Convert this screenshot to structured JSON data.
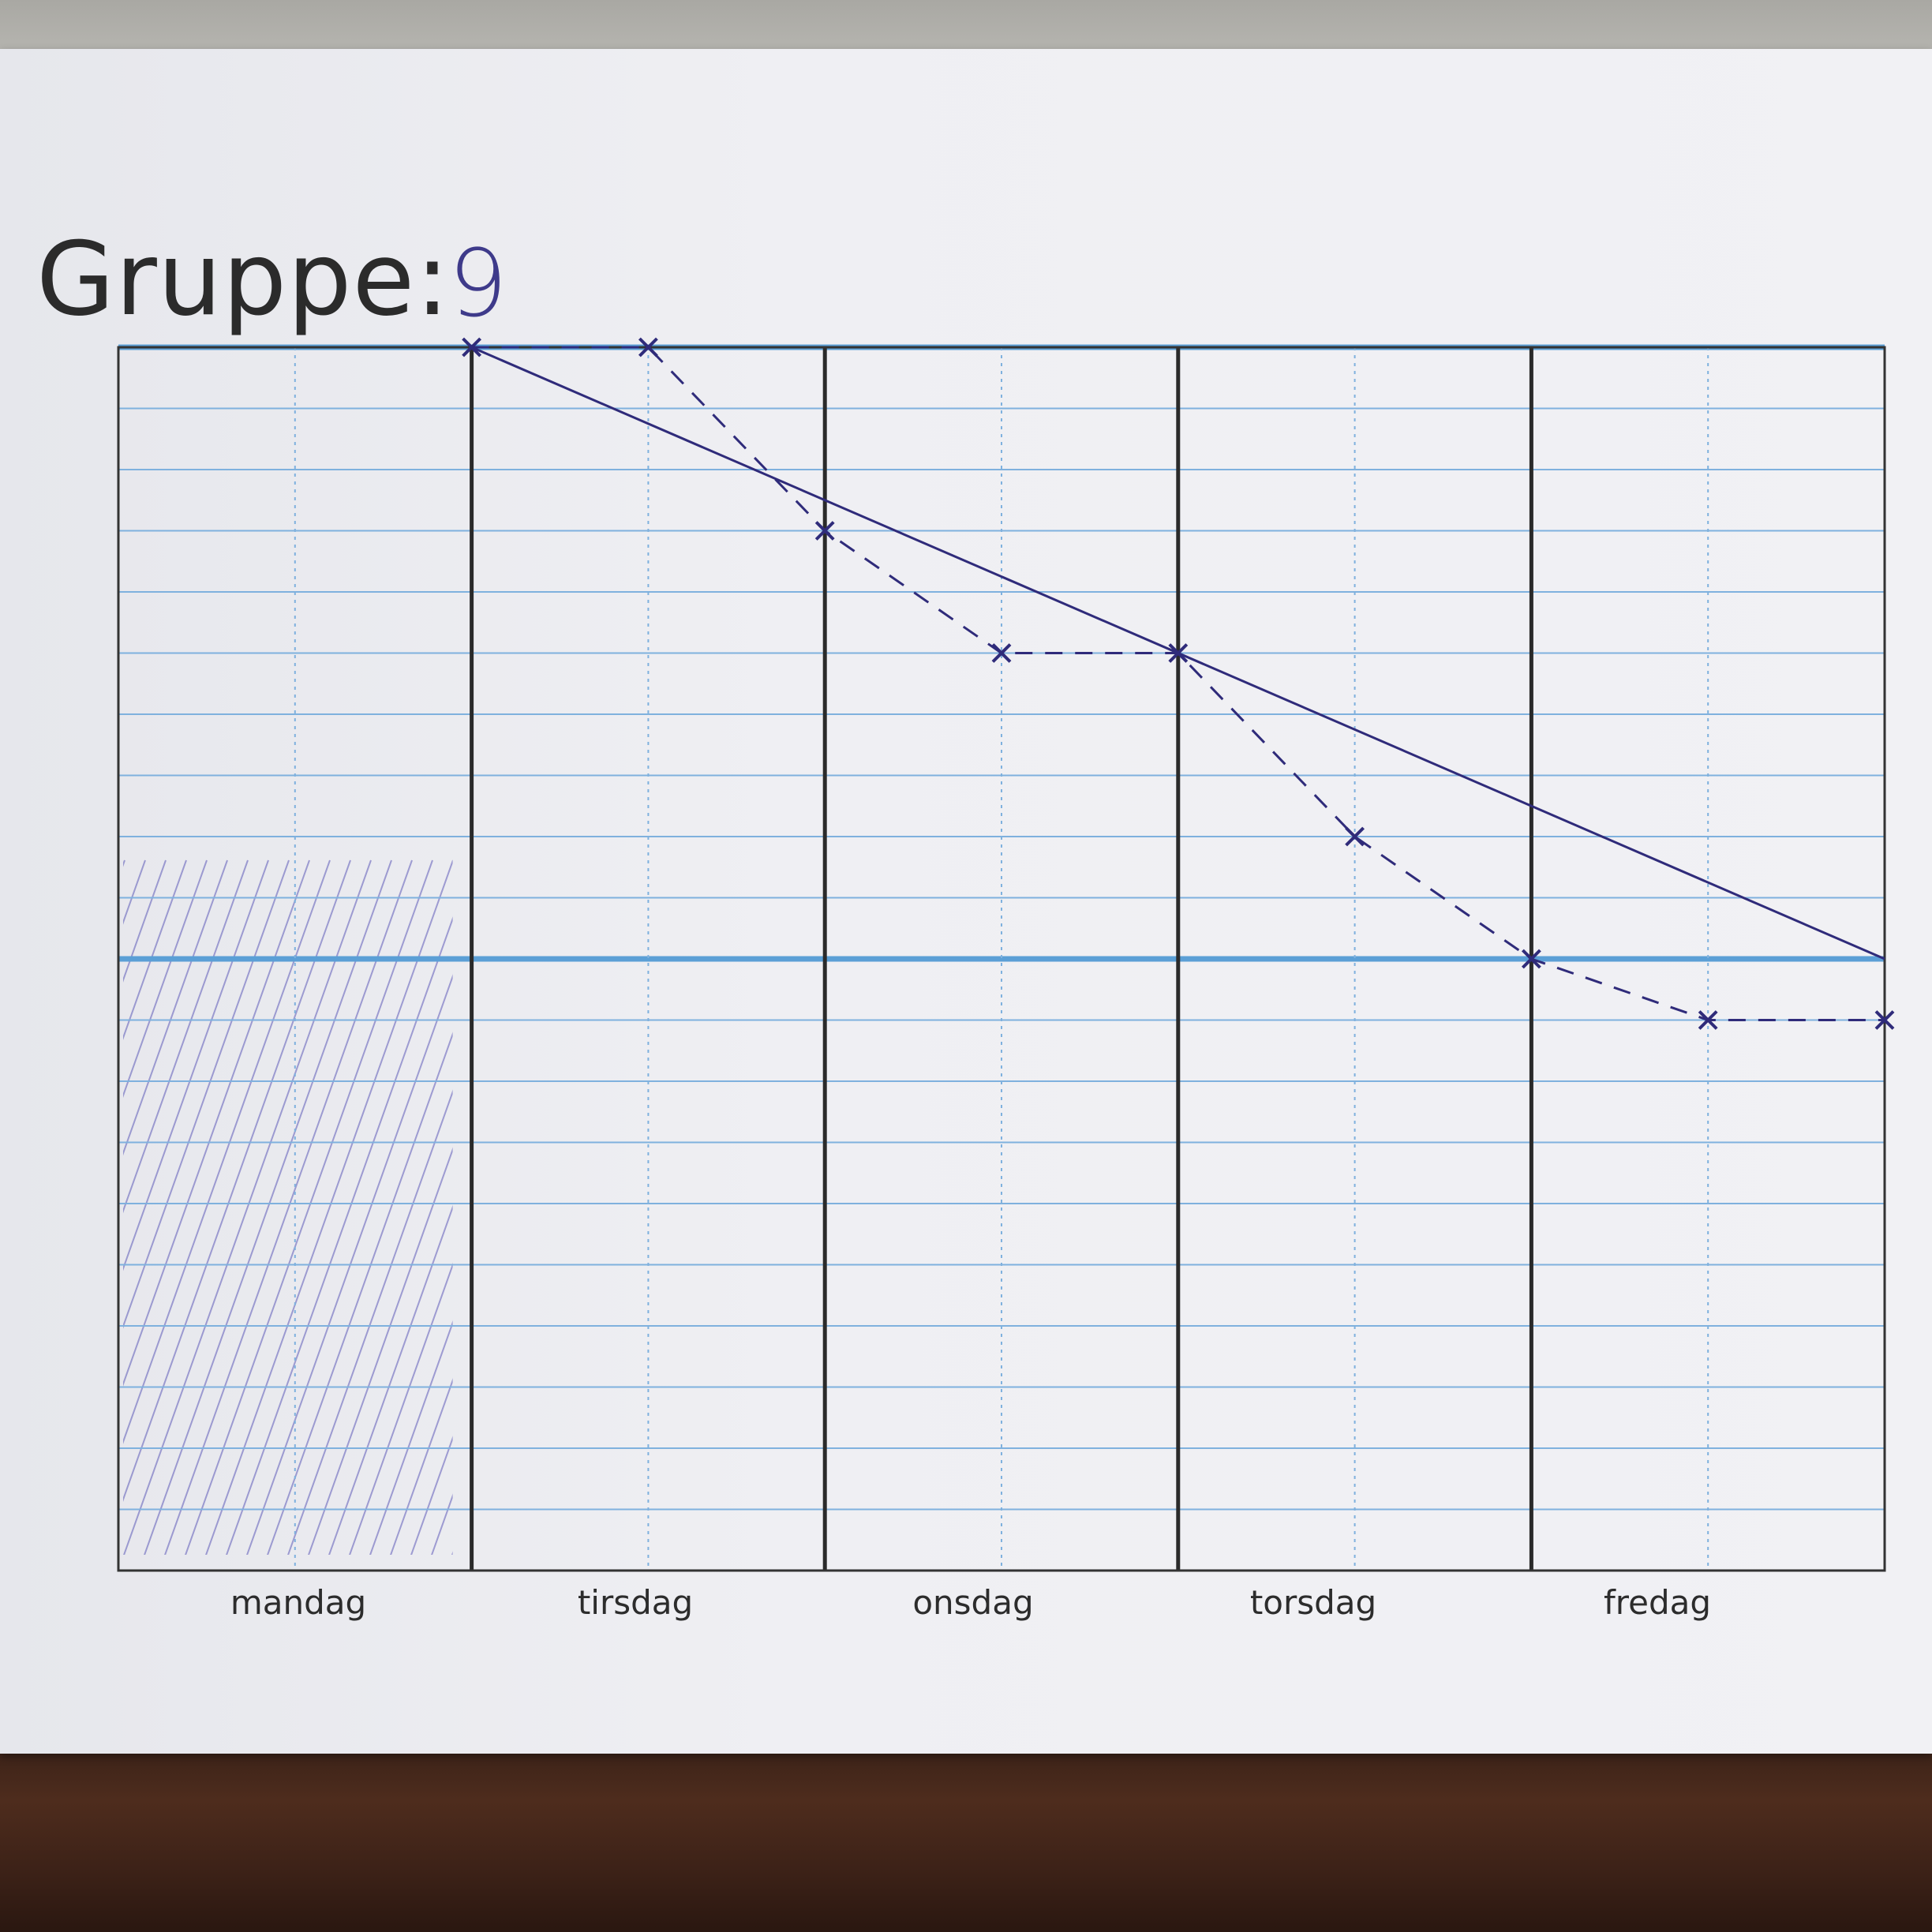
{
  "header": {
    "title_label": "Gruppe:",
    "title_value": "9"
  },
  "colors": {
    "paper": "#f0f0f3",
    "blue_rule": "#5b9fd6",
    "grid_line": "#7fb1de",
    "day_divider": "#2a2a2a",
    "ink": "#2f2b7a"
  },
  "chart_data": {
    "type": "line",
    "title": "Gruppe: 9",
    "xlabel": "",
    "ylabel": "",
    "categories": [
      "mandag",
      "tirsdag",
      "onsdag",
      "torsdag",
      "fredag"
    ],
    "x_range": [
      0,
      5
    ],
    "ylim": [
      0,
      20
    ],
    "grid": true,
    "hatched_category": "mandag",
    "series": [
      {
        "style": "solid",
        "x": [
          1,
          5
        ],
        "y": [
          20,
          10
        ]
      },
      {
        "style": "dashed",
        "markers": "x",
        "x": [
          1,
          1.5,
          2,
          2.5,
          3,
          3.5,
          4,
          4.5,
          5
        ],
        "y": [
          20,
          20,
          17,
          15,
          15,
          12,
          10,
          9,
          9
        ]
      }
    ]
  }
}
